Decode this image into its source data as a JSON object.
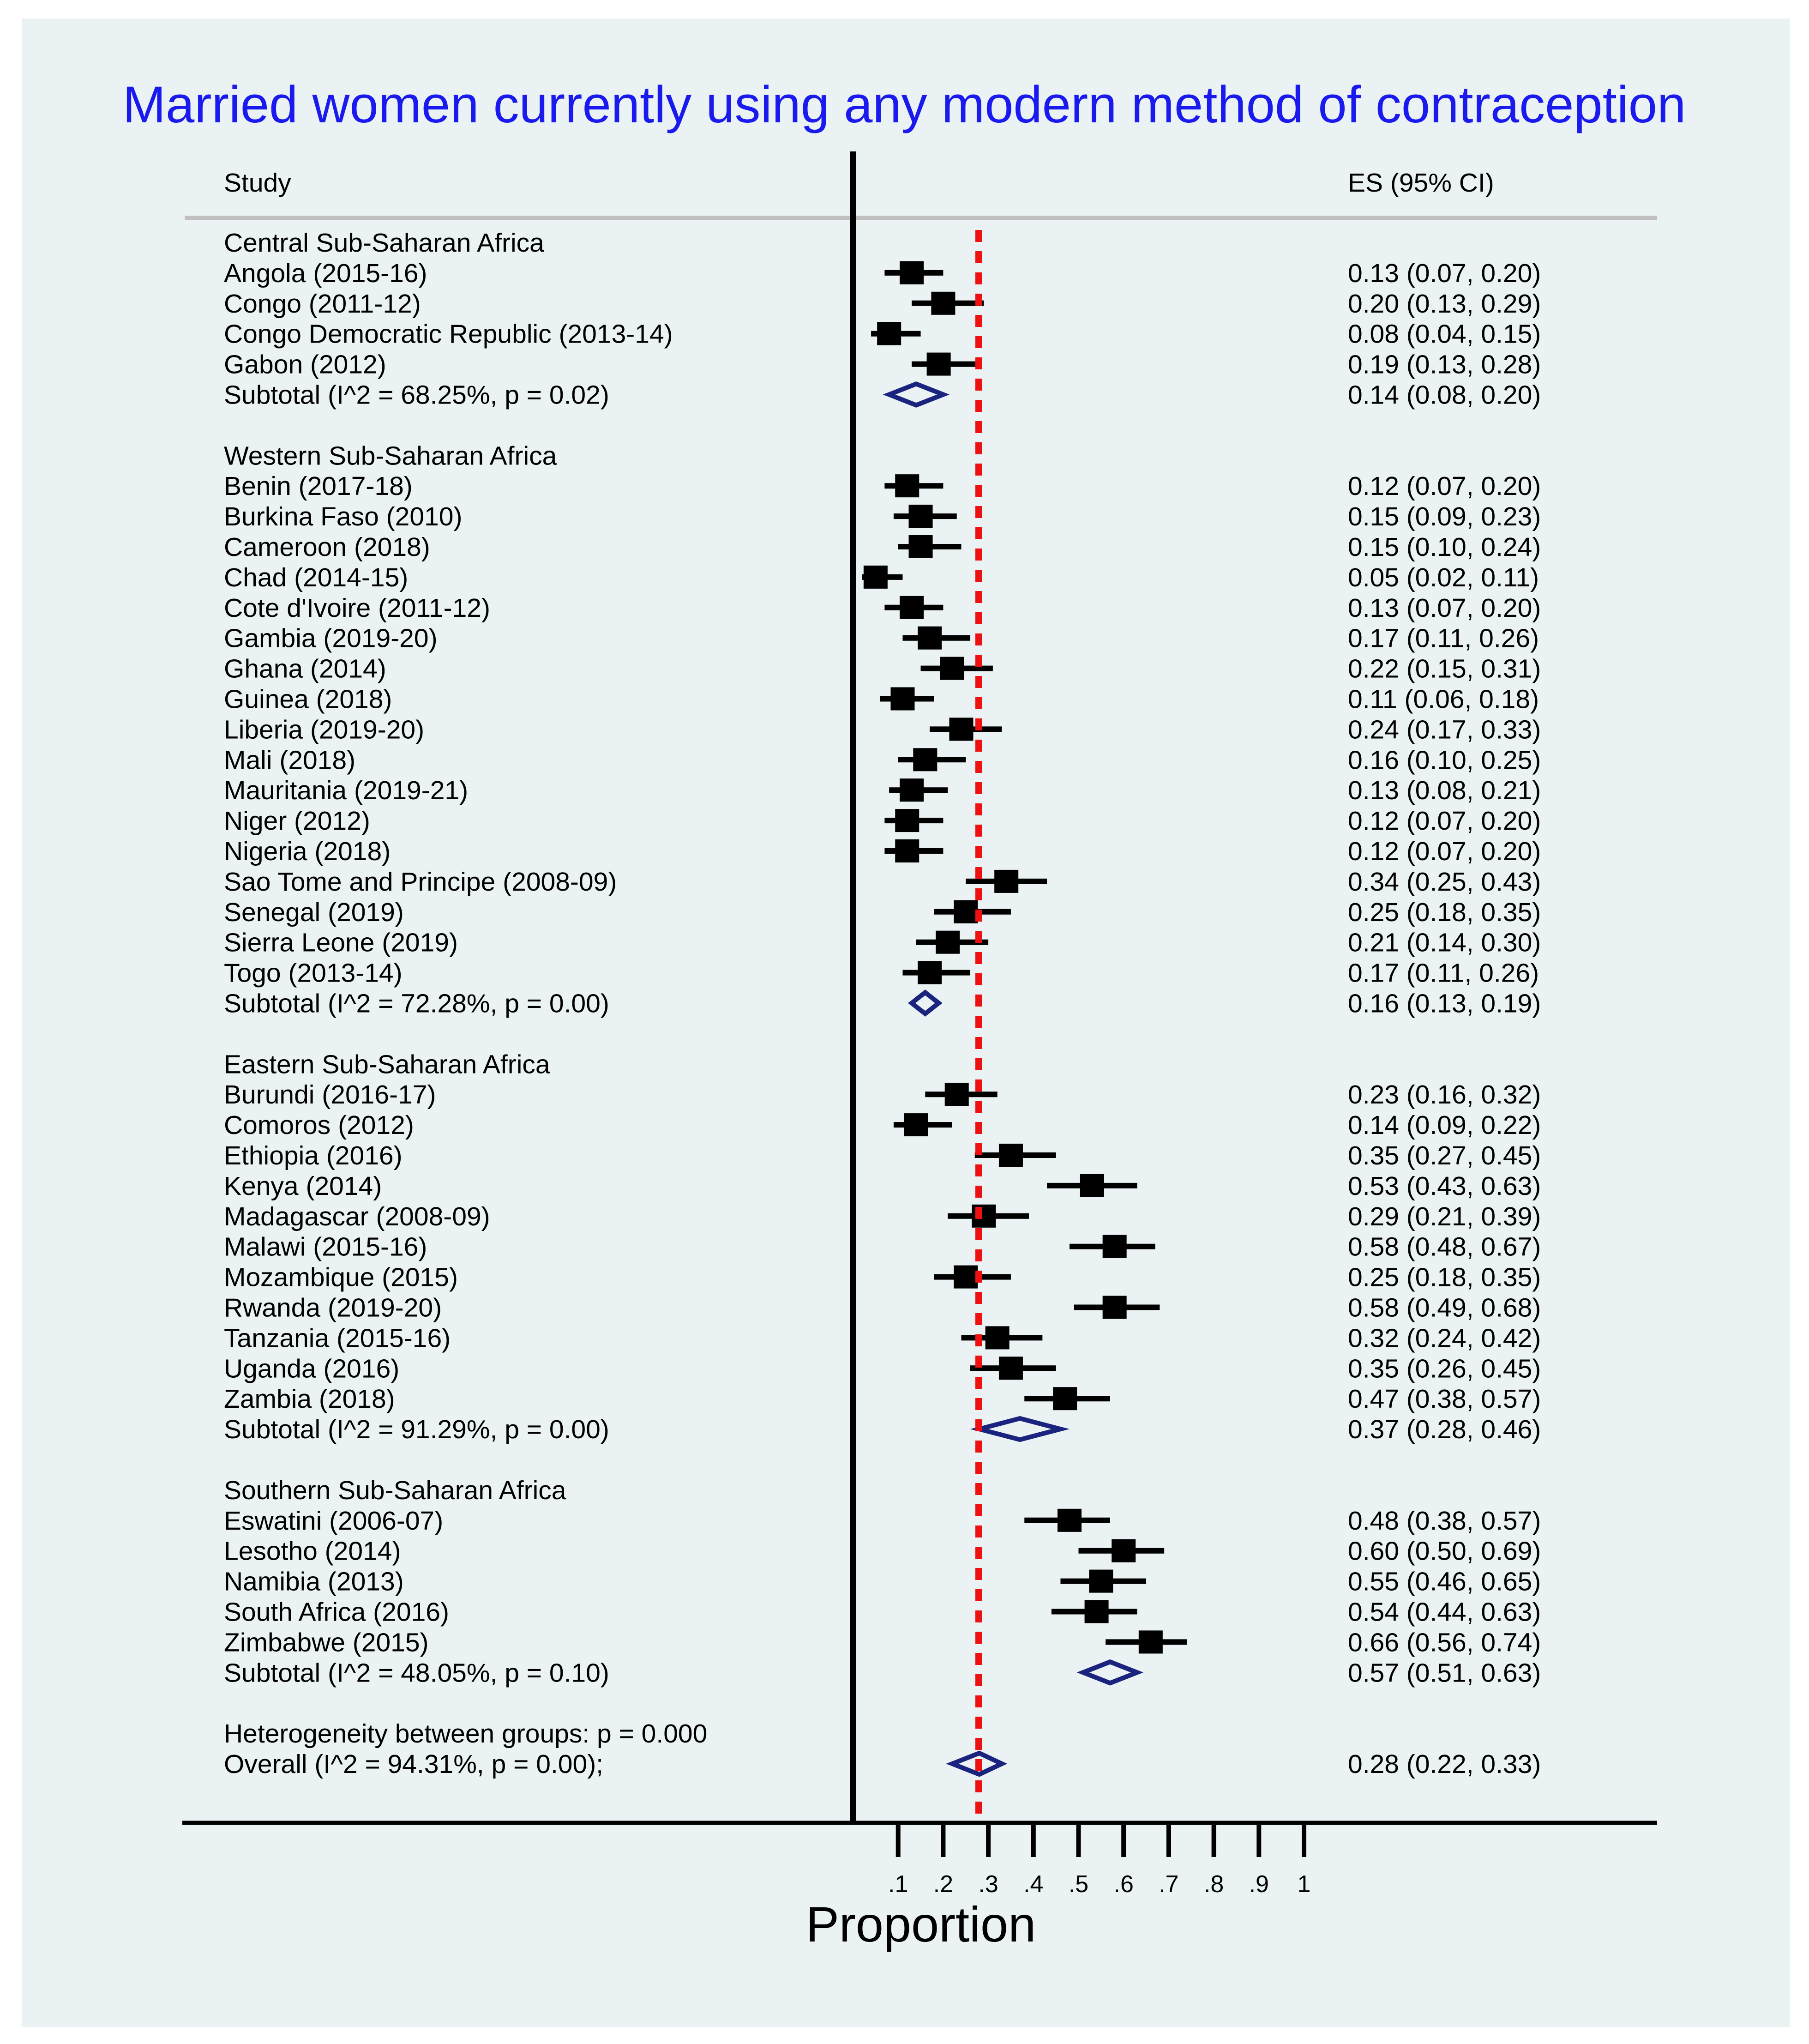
{
  "chart_data": {
    "type": "forest",
    "title": "Married women currently using any modern method of contraception",
    "columns": {
      "study": "Study",
      "es": "ES (95% CI)"
    },
    "xlabel": "Proportion",
    "x_ticks": [
      0.1,
      0.2,
      0.3,
      0.4,
      0.5,
      0.6,
      0.7,
      0.8,
      0.9,
      1.0
    ],
    "x_tick_labels": [
      ".1",
      ".2",
      ".3",
      ".4",
      ".5",
      ".6",
      ".7",
      ".8",
      ".9",
      "1"
    ],
    "reference_line": 0.28,
    "null_line": 0,
    "groups": [
      {
        "name": "Central Sub-Saharan Africa",
        "studies": [
          {
            "label": "Angola (2015-16)",
            "es": 0.13,
            "lo": 0.07,
            "hi": 0.2,
            "text": "0.13 (0.07, 0.20)"
          },
          {
            "label": "Congo (2011-12)",
            "es": 0.2,
            "lo": 0.13,
            "hi": 0.29,
            "text": "0.20 (0.13, 0.29)"
          },
          {
            "label": "Congo Democratic Republic (2013-14)",
            "es": 0.08,
            "lo": 0.04,
            "hi": 0.15,
            "text": "0.08 (0.04, 0.15)"
          },
          {
            "label": "Gabon (2012)",
            "es": 0.19,
            "lo": 0.13,
            "hi": 0.28,
            "text": "0.19 (0.13, 0.28)"
          }
        ],
        "subtotal": {
          "label": "Subtotal  (I^2 = 68.25%, p = 0.02)",
          "es": 0.14,
          "lo": 0.08,
          "hi": 0.2,
          "text": "0.14 (0.08, 0.20)"
        }
      },
      {
        "name": "Western Sub-Saharan Africa",
        "studies": [
          {
            "label": "Benin (2017-18)",
            "es": 0.12,
            "lo": 0.07,
            "hi": 0.2,
            "text": "0.12 (0.07, 0.20)"
          },
          {
            "label": "Burkina Faso (2010)",
            "es": 0.15,
            "lo": 0.09,
            "hi": 0.23,
            "text": "0.15 (0.09, 0.23)"
          },
          {
            "label": "Cameroon (2018)",
            "es": 0.15,
            "lo": 0.1,
            "hi": 0.24,
            "text": "0.15 (0.10, 0.24)"
          },
          {
            "label": "Chad (2014-15)",
            "es": 0.05,
            "lo": 0.02,
            "hi": 0.11,
            "text": "0.05 (0.02, 0.11)"
          },
          {
            "label": "Cote d'Ivoire (2011-12)",
            "es": 0.13,
            "lo": 0.07,
            "hi": 0.2,
            "text": "0.13 (0.07, 0.20)"
          },
          {
            "label": "Gambia (2019-20)",
            "es": 0.17,
            "lo": 0.11,
            "hi": 0.26,
            "text": "0.17 (0.11, 0.26)"
          },
          {
            "label": "Ghana (2014)",
            "es": 0.22,
            "lo": 0.15,
            "hi": 0.31,
            "text": "0.22 (0.15, 0.31)"
          },
          {
            "label": "Guinea (2018)",
            "es": 0.11,
            "lo": 0.06,
            "hi": 0.18,
            "text": "0.11 (0.06, 0.18)"
          },
          {
            "label": "Liberia (2019-20)",
            "es": 0.24,
            "lo": 0.17,
            "hi": 0.33,
            "text": "0.24 (0.17, 0.33)"
          },
          {
            "label": "Mali (2018)",
            "es": 0.16,
            "lo": 0.1,
            "hi": 0.25,
            "text": "0.16 (0.10, 0.25)"
          },
          {
            "label": "Mauritania (2019-21)",
            "es": 0.13,
            "lo": 0.08,
            "hi": 0.21,
            "text": "0.13 (0.08, 0.21)"
          },
          {
            "label": "Niger (2012)",
            "es": 0.12,
            "lo": 0.07,
            "hi": 0.2,
            "text": "0.12 (0.07, 0.20)"
          },
          {
            "label": "Nigeria (2018)",
            "es": 0.12,
            "lo": 0.07,
            "hi": 0.2,
            "text": "0.12 (0.07, 0.20)"
          },
          {
            "label": "Sao Tome and Principe (2008-09)",
            "es": 0.34,
            "lo": 0.25,
            "hi": 0.43,
            "text": "0.34 (0.25, 0.43)"
          },
          {
            "label": "Senegal (2019)",
            "es": 0.25,
            "lo": 0.18,
            "hi": 0.35,
            "text": "0.25 (0.18, 0.35)"
          },
          {
            "label": "Sierra Leone (2019)",
            "es": 0.21,
            "lo": 0.14,
            "hi": 0.3,
            "text": "0.21 (0.14, 0.30)"
          },
          {
            "label": "Togo (2013-14)",
            "es": 0.17,
            "lo": 0.11,
            "hi": 0.26,
            "text": "0.17 (0.11, 0.26)"
          }
        ],
        "subtotal": {
          "label": "Subtotal  (I^2 = 72.28%, p = 0.00)",
          "es": 0.16,
          "lo": 0.13,
          "hi": 0.19,
          "text": "0.16 (0.13, 0.19)"
        }
      },
      {
        "name": "Eastern Sub-Saharan Africa",
        "studies": [
          {
            "label": "Burundi (2016-17)",
            "es": 0.23,
            "lo": 0.16,
            "hi": 0.32,
            "text": "0.23 (0.16, 0.32)"
          },
          {
            "label": "Comoros (2012)",
            "es": 0.14,
            "lo": 0.09,
            "hi": 0.22,
            "text": "0.14 (0.09, 0.22)"
          },
          {
            "label": "Ethiopia (2016)",
            "es": 0.35,
            "lo": 0.27,
            "hi": 0.45,
            "text": "0.35 (0.27, 0.45)"
          },
          {
            "label": "Kenya (2014)",
            "es": 0.53,
            "lo": 0.43,
            "hi": 0.63,
            "text": "0.53 (0.43, 0.63)"
          },
          {
            "label": "Madagascar (2008-09)",
            "es": 0.29,
            "lo": 0.21,
            "hi": 0.39,
            "text": "0.29 (0.21, 0.39)"
          },
          {
            "label": "Malawi (2015-16)",
            "es": 0.58,
            "lo": 0.48,
            "hi": 0.67,
            "text": "0.58 (0.48, 0.67)"
          },
          {
            "label": "Mozambique (2015)",
            "es": 0.25,
            "lo": 0.18,
            "hi": 0.35,
            "text": "0.25 (0.18, 0.35)"
          },
          {
            "label": "Rwanda (2019-20)",
            "es": 0.58,
            "lo": 0.49,
            "hi": 0.68,
            "text": "0.58 (0.49, 0.68)"
          },
          {
            "label": "Tanzania (2015-16)",
            "es": 0.32,
            "lo": 0.24,
            "hi": 0.42,
            "text": "0.32 (0.24, 0.42)"
          },
          {
            "label": "Uganda (2016)",
            "es": 0.35,
            "lo": 0.26,
            "hi": 0.45,
            "text": "0.35 (0.26, 0.45)"
          },
          {
            "label": "Zambia (2018)",
            "es": 0.47,
            "lo": 0.38,
            "hi": 0.57,
            "text": "0.47 (0.38, 0.57)"
          }
        ],
        "subtotal": {
          "label": "Subtotal  (I^2 = 91.29%, p = 0.00)",
          "es": 0.37,
          "lo": 0.28,
          "hi": 0.46,
          "text": "0.37 (0.28, 0.46)"
        }
      },
      {
        "name": "Southern Sub-Saharan Africa",
        "studies": [
          {
            "label": "Eswatini (2006-07)",
            "es": 0.48,
            "lo": 0.38,
            "hi": 0.57,
            "text": "0.48 (0.38, 0.57)"
          },
          {
            "label": "Lesotho (2014)",
            "es": 0.6,
            "lo": 0.5,
            "hi": 0.69,
            "text": "0.60 (0.50, 0.69)"
          },
          {
            "label": "Namibia (2013)",
            "es": 0.55,
            "lo": 0.46,
            "hi": 0.65,
            "text": "0.55 (0.46, 0.65)"
          },
          {
            "label": "South Africa (2016)",
            "es": 0.54,
            "lo": 0.44,
            "hi": 0.63,
            "text": "0.54 (0.44, 0.63)"
          },
          {
            "label": "Zimbabwe (2015)",
            "es": 0.66,
            "lo": 0.56,
            "hi": 0.74,
            "text": "0.66 (0.56, 0.74)"
          }
        ],
        "subtotal": {
          "label": "Subtotal  (I^2 = 48.05%, p = 0.10)",
          "es": 0.57,
          "lo": 0.51,
          "hi": 0.63,
          "text": "0.57 (0.51, 0.63)"
        }
      }
    ],
    "heterogeneity": "Heterogeneity between groups: p = 0.000",
    "overall": {
      "label": "Overall  (I^2 = 94.31%, p = 0.00);",
      "es": 0.28,
      "lo": 0.22,
      "hi": 0.33,
      "text": "0.28 (0.22, 0.33)"
    },
    "colors": {
      "background": "#eaf2f3",
      "title": "#1a1aee",
      "marker": "#000000",
      "diamond": "#1a237e",
      "reference_line": "#ee1111",
      "header_rule": "#c0c0c0"
    }
  }
}
